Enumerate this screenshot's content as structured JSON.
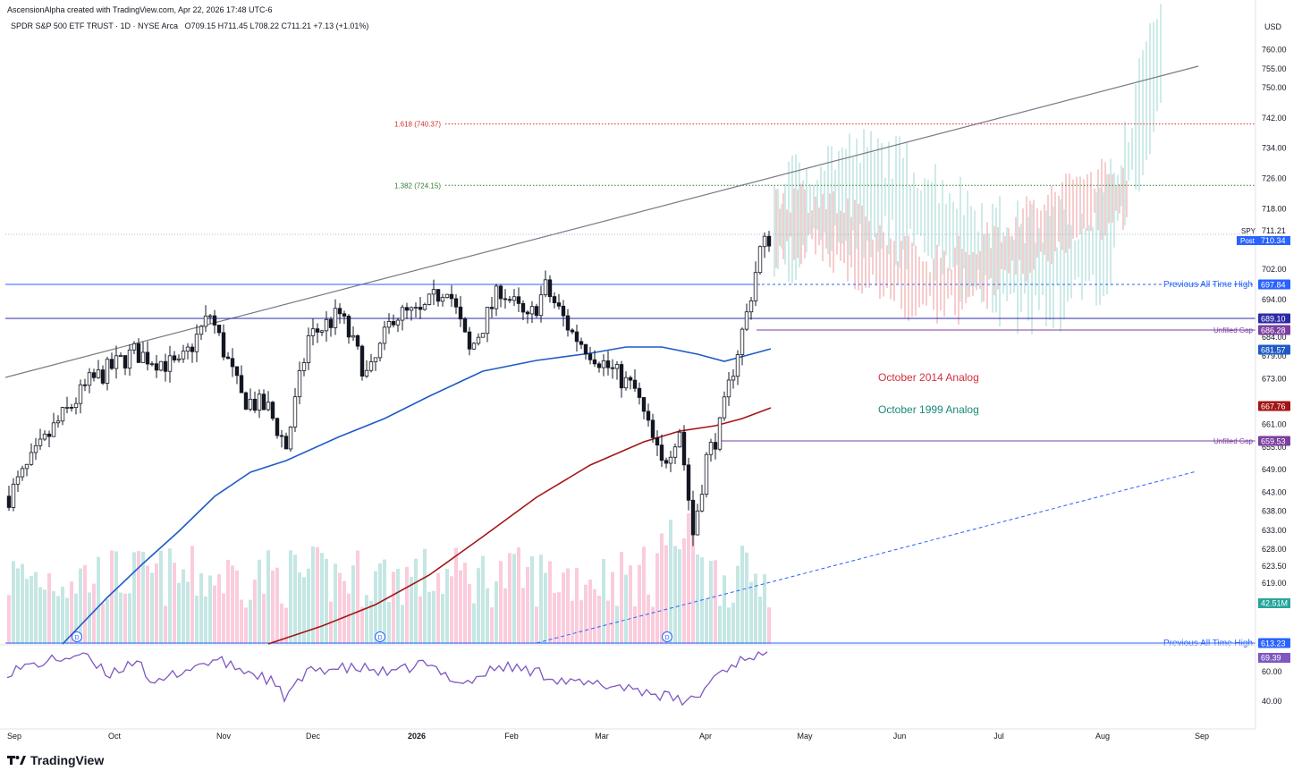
{
  "header": {
    "credit": "AscensionAlpha created with TradingView.com, Apr 22, 2026 17:48 UTC-6",
    "symbol_line": "SPDR S&P 500 ETF TRUST · 1D · NYSE Arca",
    "ohlc": "O709.15  H711.45  L708.22  C711.21  +7.13 (+1.01%)",
    "currency": "USD"
  },
  "brand": {
    "name": "TradingView"
  },
  "chart_data": {
    "type": "candlestick",
    "symbol": "SPY",
    "x_ticks": [
      "Sep",
      "Oct",
      "Nov",
      "Dec",
      "2026",
      "Feb",
      "Mar",
      "Apr",
      "May",
      "Jun",
      "Jul",
      "Aug",
      "Sep"
    ],
    "y_ticks": [
      760.0,
      755.0,
      750.0,
      742.0,
      734.0,
      726.0,
      718.0,
      702.0,
      694.0,
      684.0,
      679.0,
      673.0,
      661.0,
      655.0,
      649.0,
      643.0,
      638.0,
      633.0,
      628.0,
      623.5,
      619.0
    ],
    "last_price": {
      "label": "SPY",
      "value": "711.21",
      "post_label": "Post",
      "post_value": "710.34"
    },
    "horizontal_levels": [
      {
        "name": "Previous All Time High",
        "value": "697.84",
        "color": "#2962ff"
      },
      {
        "name": "",
        "value": "689.10",
        "color": "#2a2aa8"
      },
      {
        "name": "Unfilled Gap",
        "value": "686.28",
        "color": "#7b3fa0"
      },
      {
        "name": "Unfilled Gap",
        "value": "659.53",
        "color": "#7b3fa0"
      },
      {
        "name": "Previous All Time High",
        "value": "613.23",
        "color": "#2962ff"
      }
    ],
    "fib_levels": [
      {
        "label": "1.618 (740.37)",
        "value": 740.37,
        "color": "#d32f2f"
      },
      {
        "label": "1.382 (724.15)",
        "value": 724.15,
        "color": "#2e7d32"
      }
    ],
    "moving_averages": [
      {
        "value": "681.57",
        "color": "#1e5bc6"
      },
      {
        "value": "667.76",
        "color": "#a31515"
      }
    ],
    "analogs": [
      {
        "label": "October 2014 Analog",
        "color": "#d32f3f"
      },
      {
        "label": "October 1999 Analog",
        "color": "#1a8a78"
      }
    ],
    "volume_badge": "42.51M",
    "rsi": {
      "value": "69.39",
      "ticks": [
        "60.00",
        "40.00"
      ],
      "color": "#7e57c2"
    },
    "dividend_marker": "D"
  }
}
